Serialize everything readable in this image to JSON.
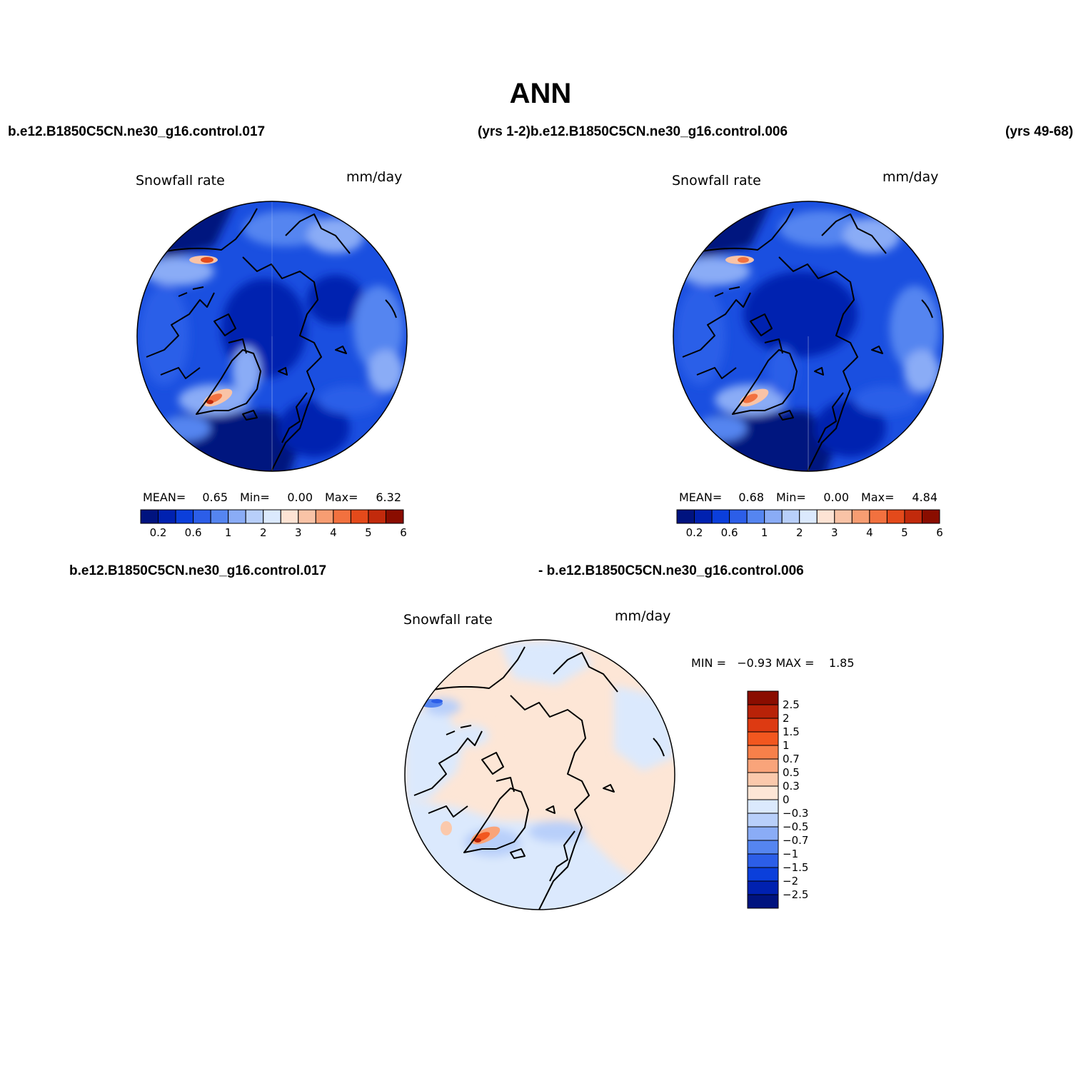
{
  "figure": {
    "title": "ANN",
    "header_left": "b.e12.B1850C5CN.ne30_g16.control.017",
    "header_mid": "(yrs 1-2)b.e12.B1850C5CN.ne30_g16.control.006",
    "header_right": "(yrs 49-68)",
    "diff_header_left": "b.e12.B1850C5CN.ne30_g16.control.017",
    "diff_header_right": "- b.e12.B1850C5CN.ne30_g16.control.006"
  },
  "panels": [
    {
      "variable": "Snowfall rate",
      "units": "mm/day",
      "stats": {
        "mean_label": "MEAN=",
        "mean": "0.65",
        "min_label": "Min=",
        "min": "0.00",
        "max_label": "Max=",
        "max": "6.32"
      }
    },
    {
      "variable": "Snowfall rate",
      "units": "mm/day",
      "stats": {
        "mean_label": "MEAN=",
        "mean": "0.68",
        "min_label": "Min=",
        "min": "0.00",
        "max_label": "Max=",
        "max": "4.84"
      }
    }
  ],
  "diff_panel": {
    "variable": "Snowfall rate",
    "units": "mm/day",
    "minmax_text": "MIN =   −0.93 MAX =    1.85"
  },
  "colorbar_abs": {
    "colors": [
      "#00137f",
      "#0021b0",
      "#0b3fdb",
      "#2c5ee8",
      "#5585f0",
      "#8aacf6",
      "#b8cffa",
      "#dbe9fd",
      "#fde3d4",
      "#f9c3a6",
      "#f79d72",
      "#f2713f",
      "#e44a1b",
      "#c22a0c",
      "#8a0d00"
    ],
    "tick_labels": [
      "0.2",
      "0.6",
      "1",
      "2",
      "3",
      "4",
      "5",
      "6"
    ]
  },
  "colorbar_diff": {
    "colors_top_to_bottom": [
      "#8a0d00",
      "#b82208",
      "#dd3a12",
      "#f2571f",
      "#f7804a",
      "#f9a47a",
      "#fbc9ac",
      "#fde6d6",
      "#dbe9fd",
      "#b8cffa",
      "#8aacf6",
      "#5585f0",
      "#2c5ee8",
      "#0b3fdb",
      "#0021b0",
      "#00137f"
    ],
    "tick_labels": [
      "2.5",
      "2",
      "1.5",
      "1",
      "0.7",
      "0.5",
      "0.3",
      "0",
      "−0.3",
      "−0.5",
      "−0.7",
      "−1",
      "−1.5",
      "−2",
      "−2.5"
    ]
  }
}
